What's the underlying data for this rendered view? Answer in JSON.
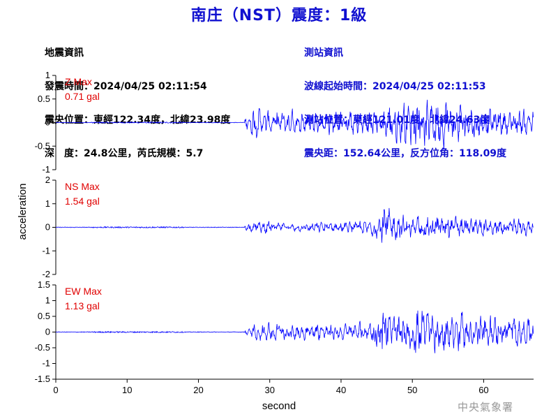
{
  "title": "南庄（NST）震度：1級",
  "quake_info": {
    "header": "地震資訊",
    "origin_time": "發震時間：2024/04/25 02:11:54",
    "epicenter": "震央位置：東經122.34度，北緯23.98度",
    "depth_magnitude": "深　度：24.8公里，芮氏規模：5.7"
  },
  "station_info": {
    "header": "測站資訊",
    "wave_start": "波線起始時間：2024/04/25 02:11:53",
    "location": "測站位置：東經121.01度，北緯24.63度",
    "distance": "震央距：152.64公里，反方位角：118.09度"
  },
  "agency": "中央氣象署",
  "colors": {
    "title": "#1010d0",
    "trace": "#0000ff",
    "max_label": "#e00000"
  },
  "chart_data": [
    {
      "type": "line",
      "component": "Z",
      "max_label": "Z Max",
      "max_value": "0.71 gal",
      "ylim": [
        -1,
        1
      ],
      "yticks": [
        -1,
        -0.5,
        0,
        0.5,
        1
      ],
      "ytick_labels": [
        "-1",
        "-0.5",
        "0",
        "0.5",
        "1"
      ],
      "onset": 27,
      "envelope": [
        [
          27,
          0.18
        ],
        [
          28,
          0.42
        ],
        [
          29,
          0.32
        ],
        [
          31,
          0.3
        ],
        [
          33,
          0.3
        ],
        [
          35,
          0.28
        ],
        [
          37,
          0.32
        ],
        [
          40,
          0.28
        ],
        [
          42,
          0.28
        ],
        [
          45,
          0.3
        ],
        [
          47,
          0.42
        ],
        [
          50,
          0.55
        ],
        [
          52,
          0.55
        ],
        [
          54,
          0.6
        ],
        [
          56,
          0.5
        ],
        [
          58,
          0.45
        ],
        [
          60,
          0.38
        ],
        [
          62,
          0.32
        ],
        [
          64,
          0.3
        ],
        [
          67,
          0.3
        ]
      ]
    },
    {
      "type": "line",
      "component": "NS",
      "max_label": "NS Max",
      "max_value": "1.54 gal",
      "ylim": [
        -2,
        2
      ],
      "yticks": [
        -2,
        -1,
        0,
        1,
        2
      ],
      "ytick_labels": [
        "-2",
        "-1",
        "0",
        "1",
        "2"
      ],
      "onset": 27,
      "envelope": [
        [
          27,
          0.15
        ],
        [
          28,
          0.3
        ],
        [
          31,
          0.25
        ],
        [
          34,
          0.18
        ],
        [
          37,
          0.28
        ],
        [
          40,
          0.25
        ],
        [
          42,
          0.3
        ],
        [
          44,
          0.38
        ],
        [
          45.5,
          0.6
        ],
        [
          46,
          1.3
        ],
        [
          47,
          0.7
        ],
        [
          48,
          0.6
        ],
        [
          50,
          0.55
        ],
        [
          52,
          0.55
        ],
        [
          54,
          0.6
        ],
        [
          56,
          0.55
        ],
        [
          58,
          0.45
        ],
        [
          60,
          0.45
        ],
        [
          62,
          0.4
        ],
        [
          64,
          0.4
        ],
        [
          67,
          0.4
        ]
      ]
    },
    {
      "type": "line",
      "component": "EW",
      "max_label": "EW Max",
      "max_value": "1.13 gal",
      "ylim": [
        -1.5,
        1.5
      ],
      "yticks": [
        -1.5,
        -1,
        -0.5,
        0,
        0.5,
        1,
        1.5
      ],
      "ytick_labels": [
        "-1.5",
        "-1",
        "-0.5",
        "0",
        "0.5",
        "1",
        "1.5"
      ],
      "onset": 27,
      "envelope": [
        [
          27,
          0.12
        ],
        [
          28,
          0.3
        ],
        [
          30,
          0.32
        ],
        [
          32,
          0.28
        ],
        [
          35,
          0.3
        ],
        [
          38,
          0.28
        ],
        [
          40,
          0.28
        ],
        [
          42,
          0.32
        ],
        [
          44,
          0.38
        ],
        [
          45.5,
          0.8
        ],
        [
          46,
          1.0
        ],
        [
          47,
          0.6
        ],
        [
          49,
          0.6
        ],
        [
          51,
          0.85
        ],
        [
          53,
          0.75
        ],
        [
          55,
          0.75
        ],
        [
          57,
          0.7
        ],
        [
          59,
          0.6
        ],
        [
          62,
          0.55
        ],
        [
          64,
          0.5
        ],
        [
          67,
          0.45
        ]
      ]
    }
  ],
  "xaxis": {
    "label": "second",
    "ticks": [
      0,
      10,
      20,
      30,
      40,
      50,
      60
    ],
    "tick_labels": [
      "0",
      "10",
      "20",
      "30",
      "40",
      "50",
      "60"
    ],
    "xlim": [
      0,
      67
    ]
  },
  "yaxis": {
    "label": "acceleration"
  }
}
